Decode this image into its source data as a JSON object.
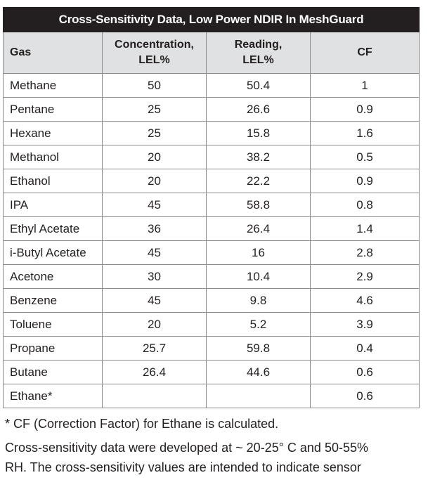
{
  "table": {
    "title": "Cross-Sensitivity Data, Low Power NDIR In MeshGuard",
    "headers": {
      "gas": "Gas",
      "concentration_line1": "Concentration,",
      "concentration_line2": "LEL%",
      "reading_line1": "Reading,",
      "reading_line2": "LEL%",
      "cf": "CF"
    },
    "rows": [
      {
        "gas": "Methane",
        "concentration": "50",
        "reading": "50.4",
        "cf": "1"
      },
      {
        "gas": "Pentane",
        "concentration": "25",
        "reading": "26.6",
        "cf": "0.9"
      },
      {
        "gas": "Hexane",
        "concentration": "25",
        "reading": "15.8",
        "cf": "1.6"
      },
      {
        "gas": "Methanol",
        "concentration": "20",
        "reading": "38.2",
        "cf": "0.5"
      },
      {
        "gas": "Ethanol",
        "concentration": "20",
        "reading": "22.2",
        "cf": "0.9"
      },
      {
        "gas": "IPA",
        "concentration": "45",
        "reading": "58.8",
        "cf": "0.8"
      },
      {
        "gas": "Ethyl Acetate",
        "concentration": "36",
        "reading": "26.4",
        "cf": "1.4"
      },
      {
        "gas": "i-Butyl Acetate",
        "concentration": "45",
        "reading": "16",
        "cf": "2.8"
      },
      {
        "gas": "Acetone",
        "concentration": "30",
        "reading": "10.4",
        "cf": "2.9"
      },
      {
        "gas": "Benzene",
        "concentration": "45",
        "reading": "9.8",
        "cf": "4.6"
      },
      {
        "gas": "Toluene",
        "concentration": "20",
        "reading": "5.2",
        "cf": "3.9"
      },
      {
        "gas": "Propane",
        "concentration": "25.7",
        "reading": "59.8",
        "cf": "0.4"
      },
      {
        "gas": "Butane",
        "concentration": "26.4",
        "reading": "44.6",
        "cf": "0.6"
      },
      {
        "gas": "Ethane*",
        "concentration": "",
        "reading": "",
        "cf": "0.6"
      }
    ]
  },
  "footnote": "* CF (Correction Factor) for Ethane is calculated.",
  "paragraph_line1": "Cross-sensitivity data were developed at ~ 20-25° C and 50-55%",
  "paragraph_line2": "RH. The cross-sensitivity values are intended to indicate sensor",
  "colors": {
    "title_bg": "#231f20",
    "header_bg": "#e0e1e2",
    "border": "#8a8a8a"
  }
}
